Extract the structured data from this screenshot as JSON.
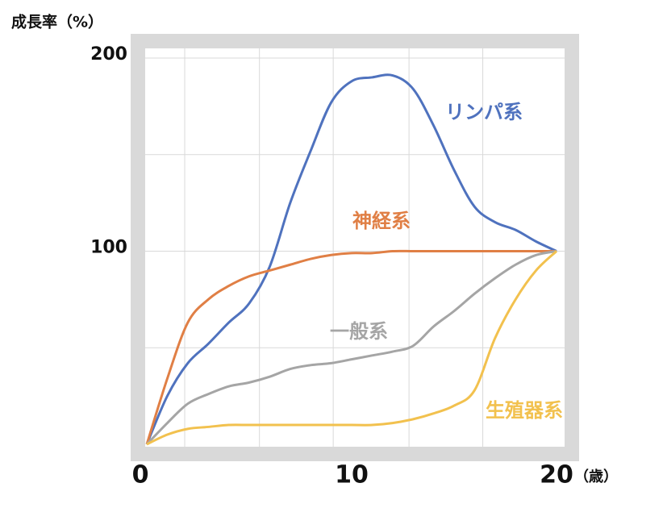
{
  "chart_data": {
    "type": "line",
    "y_axis_title": "成長率（%）",
    "x_unit": "（歳）",
    "x": [
      0,
      1,
      2,
      3,
      4,
      5,
      6,
      7,
      8,
      9,
      10,
      11,
      12,
      13,
      14,
      15,
      16,
      17,
      18,
      19,
      20
    ],
    "xlim": [
      0,
      20
    ],
    "xticks": [
      0,
      10,
      20
    ],
    "ylim": [
      0,
      205
    ],
    "yticks": [
      100,
      200
    ],
    "y_gridlines": [
      50,
      100,
      150,
      200
    ],
    "x_gridlines": [
      1.85,
      5.5,
      9.1,
      12.8,
      16.4
    ],
    "grid": true,
    "series": [
      {
        "name": "リンパ系",
        "color": "#4f72be",
        "values": [
          0,
          25,
          42,
          52,
          63,
          73,
          92,
          125,
          152,
          177,
          188,
          190,
          191,
          184,
          165,
          142,
          123,
          115,
          111,
          105,
          100
        ]
      },
      {
        "name": "神経系",
        "color": "#e07f45",
        "values": [
          0,
          34,
          63,
          75,
          82,
          87,
          90,
          93,
          96,
          98,
          99,
          99,
          100,
          100,
          100,
          100,
          100,
          100,
          100,
          100,
          100
        ]
      },
      {
        "name": "一般系",
        "color": "#a5a5a5",
        "values": [
          0,
          11,
          21,
          26,
          30,
          32,
          35,
          39,
          41,
          42,
          44,
          46,
          48,
          51,
          61,
          69,
          78,
          86,
          93,
          98,
          100
        ]
      },
      {
        "name": "生殖器系",
        "color": "#f2c14e",
        "values": [
          0,
          5,
          8,
          9,
          10,
          10,
          10,
          10,
          10,
          10,
          10,
          10,
          11,
          13,
          16,
          20,
          28,
          55,
          75,
          90,
          100
        ]
      }
    ]
  }
}
